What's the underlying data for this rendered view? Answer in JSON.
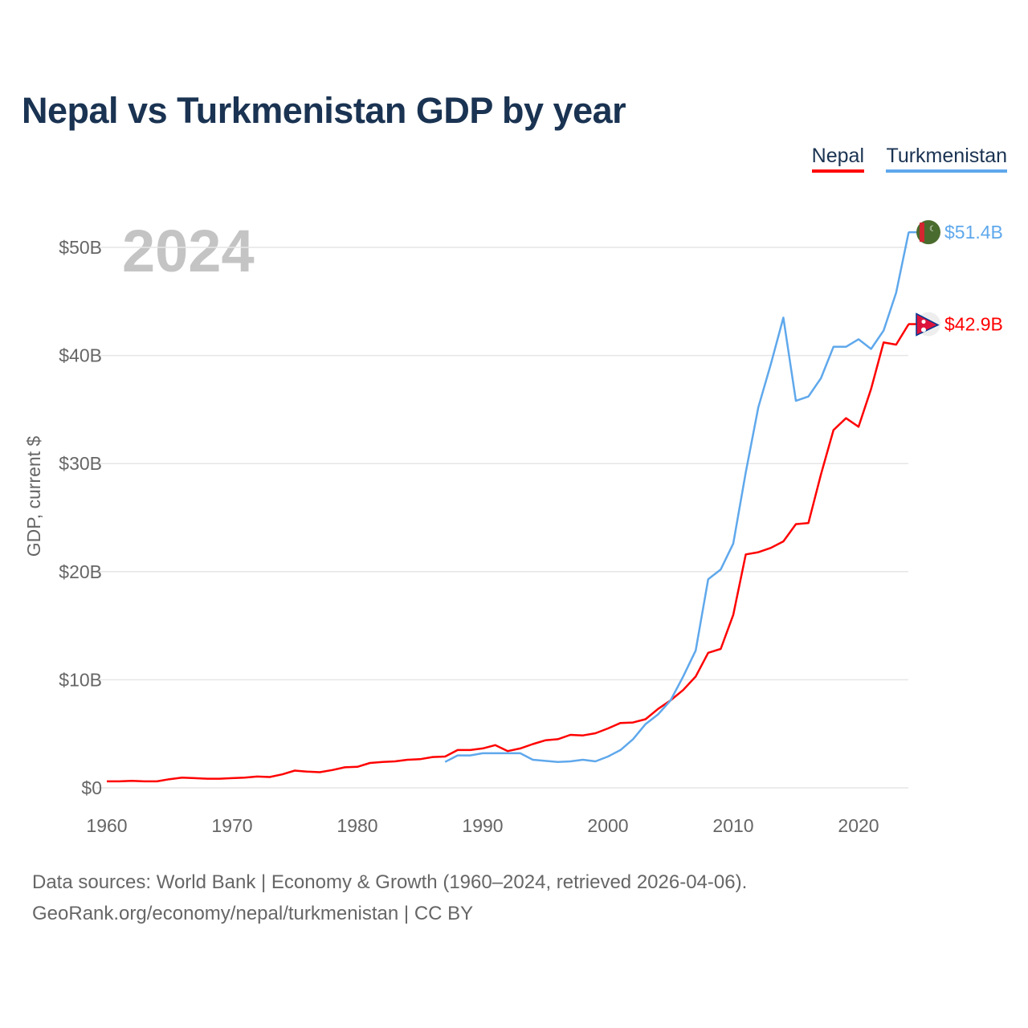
{
  "title": "Nepal vs Turkmenistan GDP by year",
  "year_watermark": "2024",
  "footer": {
    "line1": "Data sources: World Bank | Economy & Growth (1960–2024, retrieved 2026-04-06).",
    "line2": "GeoRank.org/economy/nepal/turkmenistan | CC BY"
  },
  "chart_data": {
    "type": "line",
    "title": "Nepal vs Turkmenistan GDP by year",
    "xlabel": "",
    "ylabel": "GDP, current $",
    "xlim": [
      1960,
      2024
    ],
    "ylim": [
      0,
      52
    ],
    "grid": true,
    "legend_placement": "top-right",
    "x_ticks": [
      1960,
      1970,
      1980,
      1990,
      2000,
      2010,
      2020
    ],
    "x_tick_labels": [
      "1960",
      "1970",
      "1980",
      "1990",
      "2000",
      "2010",
      "2020"
    ],
    "y_ticks": [
      0,
      10,
      20,
      30,
      40,
      50
    ],
    "y_tick_labels": [
      "$0",
      "$10B",
      "$20B",
      "$30B",
      "$40B",
      "$50B"
    ],
    "series": [
      {
        "name": "Nepal",
        "color": "#ff0000",
        "end_label": "$42.9B",
        "start_year": 1960,
        "values": [
          0.6,
          0.6,
          0.65,
          0.6,
          0.6,
          0.8,
          0.95,
          0.9,
          0.85,
          0.85,
          0.9,
          0.95,
          1.05,
          1.0,
          1.25,
          1.6,
          1.5,
          1.45,
          1.65,
          1.9,
          1.95,
          2.3,
          2.4,
          2.45,
          2.6,
          2.65,
          2.85,
          2.9,
          3.5,
          3.5,
          3.65,
          3.95,
          3.4,
          3.65,
          4.05,
          4.4,
          4.5,
          4.9,
          4.85,
          5.05,
          5.5,
          6.0,
          6.05,
          6.35,
          7.3,
          8.1,
          9.05,
          10.3,
          12.5,
          12.85,
          16.0,
          21.6,
          21.8,
          22.2,
          22.8,
          24.4,
          24.5,
          29.0,
          33.1,
          34.2,
          33.4,
          36.9,
          41.2,
          41.0,
          42.9
        ]
      },
      {
        "name": "Turkmenistan",
        "color": "#5fa8ec",
        "end_label": "$51.4B",
        "start_year": 1987,
        "values": [
          2.4,
          3.0,
          3.0,
          3.2,
          3.2,
          3.2,
          3.2,
          2.6,
          2.5,
          2.4,
          2.45,
          2.6,
          2.45,
          2.9,
          3.5,
          4.5,
          5.9,
          6.8,
          8.1,
          10.3,
          12.7,
          19.3,
          20.2,
          22.6,
          29.2,
          35.2,
          39.2,
          43.5,
          35.8,
          36.2,
          37.9,
          40.8,
          40.8,
          41.5,
          40.6,
          42.3,
          45.8,
          51.4
        ]
      }
    ]
  }
}
